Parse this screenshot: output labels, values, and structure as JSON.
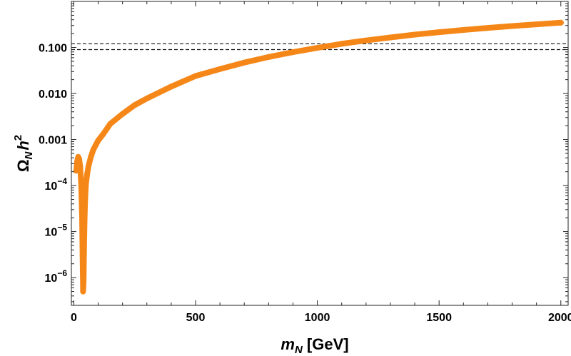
{
  "chart_data": {
    "type": "scatter",
    "title": "",
    "xlabel": "m_N [GeV]",
    "xlabel_parts": {
      "main": "m",
      "sub": "N",
      "rest": " [GeV]"
    },
    "ylabel": "Ω_N h^2",
    "ylabel_parts": {
      "main": "Ω",
      "sub": "N",
      "mid": "h",
      "sup": "2"
    },
    "x_scale": "linear",
    "y_scale": "log",
    "xlim": [
      -10,
      2030
    ],
    "ylim": [
      2.5e-07,
      1.0
    ],
    "grid": false,
    "x_ticks": [
      {
        "value": 0,
        "label": "0"
      },
      {
        "value": 500,
        "label": "500"
      },
      {
        "value": 1000,
        "label": "1000"
      },
      {
        "value": 1500,
        "label": "1500"
      },
      {
        "value": 2000,
        "label": "2000"
      }
    ],
    "y_ticks": [
      {
        "value": 0.1,
        "label": "0.100"
      },
      {
        "value": 0.01,
        "label": "0.010"
      },
      {
        "value": 0.001,
        "label": "0.001"
      },
      {
        "value": 0.0001,
        "base": "10",
        "exp": "−4"
      },
      {
        "value": 1e-05,
        "base": "10",
        "exp": "−5"
      },
      {
        "value": 1e-06,
        "base": "10",
        "exp": "−6"
      }
    ],
    "reference_lines": [
      {
        "name": "observed-relic-upper",
        "y": 0.12,
        "style": "dashed"
      },
      {
        "name": "observed-relic-lower",
        "y": 0.09,
        "style": "dashed"
      }
    ],
    "series": [
      {
        "name": "relic-density",
        "color": "#F58718",
        "x": [
          10,
          14,
          18,
          22,
          26,
          30,
          34,
          36,
          38,
          40,
          42,
          44,
          46,
          48,
          50,
          55,
          60,
          70,
          80,
          100,
          120,
          150,
          200,
          250,
          300,
          400,
          500,
          600,
          700,
          800,
          900,
          1000,
          1100,
          1200,
          1300,
          1400,
          1500,
          1600,
          1700,
          1800,
          1900,
          2000
        ],
        "y": [
          0.00021,
          0.00034,
          0.00042,
          0.00038,
          0.00026,
          0.00012,
          2e-05,
          3e-06,
          5e-07,
          8e-07,
          4e-06,
          1.6e-05,
          4e-05,
          7.5e-05,
          0.00011,
          0.00018,
          0.00026,
          0.00042,
          0.0006,
          0.00095,
          0.0013,
          0.0022,
          0.0036,
          0.0056,
          0.0078,
          0.0141,
          0.024,
          0.034,
          0.047,
          0.062,
          0.079,
          0.098,
          0.12,
          0.142,
          0.165,
          0.19,
          0.215,
          0.24,
          0.266,
          0.292,
          0.318,
          0.345
        ]
      }
    ]
  }
}
